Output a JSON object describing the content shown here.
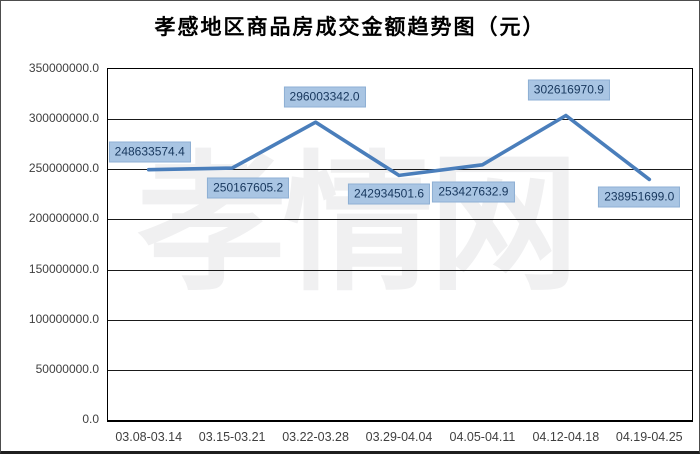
{
  "chart": {
    "title": "孝感地区商品房成交金额趋势图（元）",
    "watermark": "孝情网"
  },
  "chart_data": {
    "type": "line",
    "title": "孝感地区商品房成交金额趋势图（元）",
    "categories": [
      "03.08-03.14",
      "03.15-03.21",
      "03.22-03.28",
      "03.29-04.04",
      "04.05-04.11",
      "04.12-04.18",
      "04.19-04.25"
    ],
    "values": [
      248633574.4,
      250167605.2,
      296003342.0,
      242934501.6,
      253427632.9,
      302616970.9,
      238951699.0
    ],
    "value_labels": [
      "248633574.4",
      "250167605.2",
      "296003342.0",
      "242934501.6",
      "253427632.9",
      "302616970.9",
      "238951699.0"
    ],
    "y_ticks": [
      "0.0",
      "50000000.0",
      "100000000.0",
      "150000000.0",
      "200000000.0",
      "250000000.0",
      "300000000.0",
      "350000000.0"
    ],
    "ylim": [
      0,
      350000000
    ],
    "xlabel": "",
    "ylabel": "",
    "grid": "horizontal",
    "legend": "none",
    "label_positions": [
      "above",
      "below-right",
      "above",
      "below-left",
      "below-left",
      "above",
      "below-left"
    ],
    "colors": {
      "line": "#4a7ebb",
      "label_fill": "#a9c5e3",
      "label_border": "#8eafd4",
      "label_text": "#17375d",
      "axis_text": "#3f3f3f",
      "gridline": "#1a1a1a",
      "watermark": "#f0f0f1"
    }
  }
}
